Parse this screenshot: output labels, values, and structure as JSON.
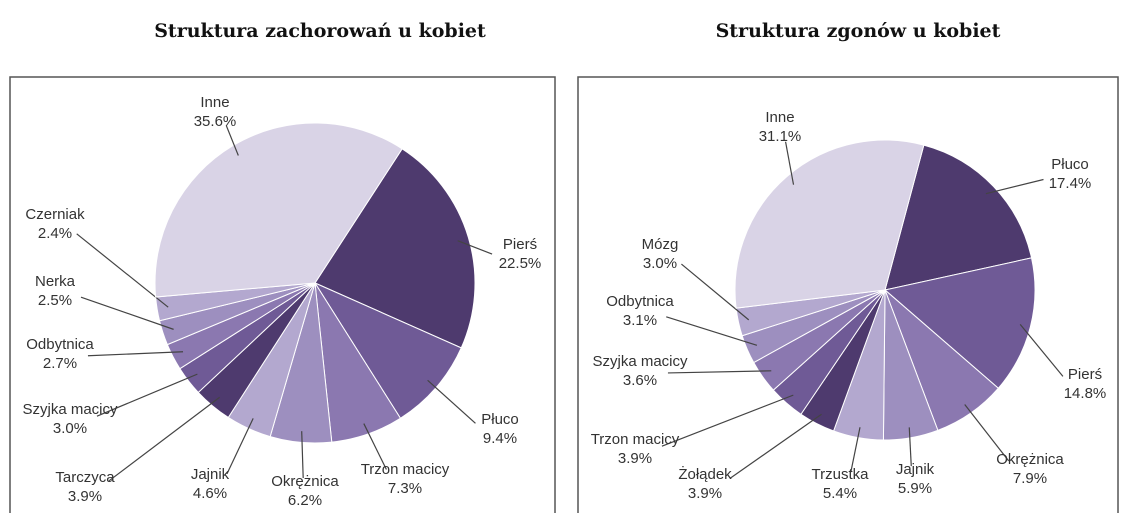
{
  "chart_data": [
    {
      "type": "pie",
      "title": "Struktura zachorowań u kobiet",
      "categories": [
        "Pierś",
        "Płuco",
        "Trzon macicy",
        "Okrężnica",
        "Jajnik",
        "Tarczyca",
        "Szyjka macicy",
        "Odbytnica",
        "Nerka",
        "Czerniak",
        "Inne"
      ],
      "values": [
        22.5,
        9.4,
        7.3,
        6.2,
        4.6,
        3.9,
        3.0,
        2.7,
        2.5,
        2.4,
        35.6
      ],
      "value_labels": [
        "22.5%",
        "9.4%",
        "7.3%",
        "6.2%",
        "4.6%",
        "3.9%",
        "3.0%",
        "2.7%",
        "2.5%",
        "2.4%",
        "35.6%"
      ],
      "colors": [
        "#4e3a6e",
        "#6f5a96",
        "#8b78b0",
        "#9d8fbf",
        "#b3a8cf",
        "#4e3a6e",
        "#6f5a96",
        "#8b78b0",
        "#9d8fbf",
        "#b3a8cf",
        "#d9d3e6"
      ]
    },
    {
      "type": "pie",
      "title": "Struktura zgonów u kobiet",
      "categories": [
        "Płuco",
        "Pierś",
        "Okrężnica",
        "Jajnik",
        "Trzustka",
        "Żołądek",
        "Trzon macicy",
        "Szyjka macicy",
        "Odbytnica",
        "Mózg",
        "Inne"
      ],
      "values": [
        17.4,
        14.8,
        7.9,
        5.9,
        5.4,
        3.9,
        3.9,
        3.6,
        3.1,
        3.0,
        31.1
      ],
      "value_labels": [
        "17.4%",
        "14.8%",
        "7.9%",
        "5.9%",
        "5.4%",
        "3.9%",
        "3.9%",
        "3.6%",
        "3.1%",
        "3.0%",
        "31.1%"
      ],
      "colors": [
        "#4e3a6e",
        "#6f5a96",
        "#8b78b0",
        "#9d8fbf",
        "#b3a8cf",
        "#4e3a6e",
        "#6f5a96",
        "#8b78b0",
        "#9d8fbf",
        "#b3a8cf",
        "#d9d3e6"
      ]
    }
  ]
}
